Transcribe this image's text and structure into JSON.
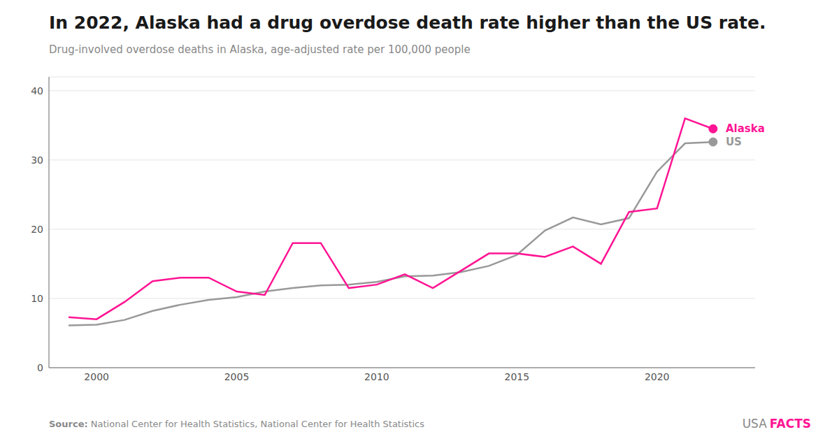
{
  "chart_data": {
    "type": "line",
    "title": "In 2022, Alaska had a drug overdose death rate higher than the US rate.",
    "subtitle": "Drug-involved overdose deaths in Alaska, age-adjusted rate per 100,000 people",
    "annotations": [
      "Source: National Center for Health Statistics, National Center for Health Statistics",
      "USA",
      "FACTS"
    ],
    "x": [
      1999,
      2000,
      2001,
      2002,
      2003,
      2004,
      2005,
      2006,
      2007,
      2008,
      2009,
      2010,
      2011,
      2012,
      2013,
      2014,
      2015,
      2016,
      2017,
      2018,
      2019,
      2020,
      2021,
      2022
    ],
    "series": [
      {
        "name": "US",
        "color": "#999999",
        "values": [
          6.1,
          6.2,
          6.9,
          8.2,
          9.1,
          9.8,
          10.2,
          11.0,
          11.5,
          11.9,
          12.0,
          12.4,
          13.2,
          13.3,
          13.8,
          14.7,
          16.3,
          19.8,
          21.7,
          20.7,
          21.6,
          28.3,
          32.4,
          32.6
        ]
      },
      {
        "name": "Alaska",
        "color": "#FF1493",
        "values": [
          7.3,
          7.0,
          9.5,
          12.5,
          13.0,
          13.0,
          11.0,
          10.5,
          18.0,
          18.0,
          11.5,
          12.0,
          13.5,
          11.5,
          14.0,
          16.5,
          16.5,
          16.0,
          17.5,
          15.0,
          22.5,
          23.0,
          36.0,
          34.5
        ]
      }
    ],
    "xlim": [
      1998.3,
      2023.5
    ],
    "xticks": [
      2000,
      2005,
      2010,
      2015,
      2020
    ],
    "ylim": [
      0,
      42
    ],
    "yticks": [
      0,
      10,
      20,
      30,
      40
    ],
    "grid": true
  }
}
